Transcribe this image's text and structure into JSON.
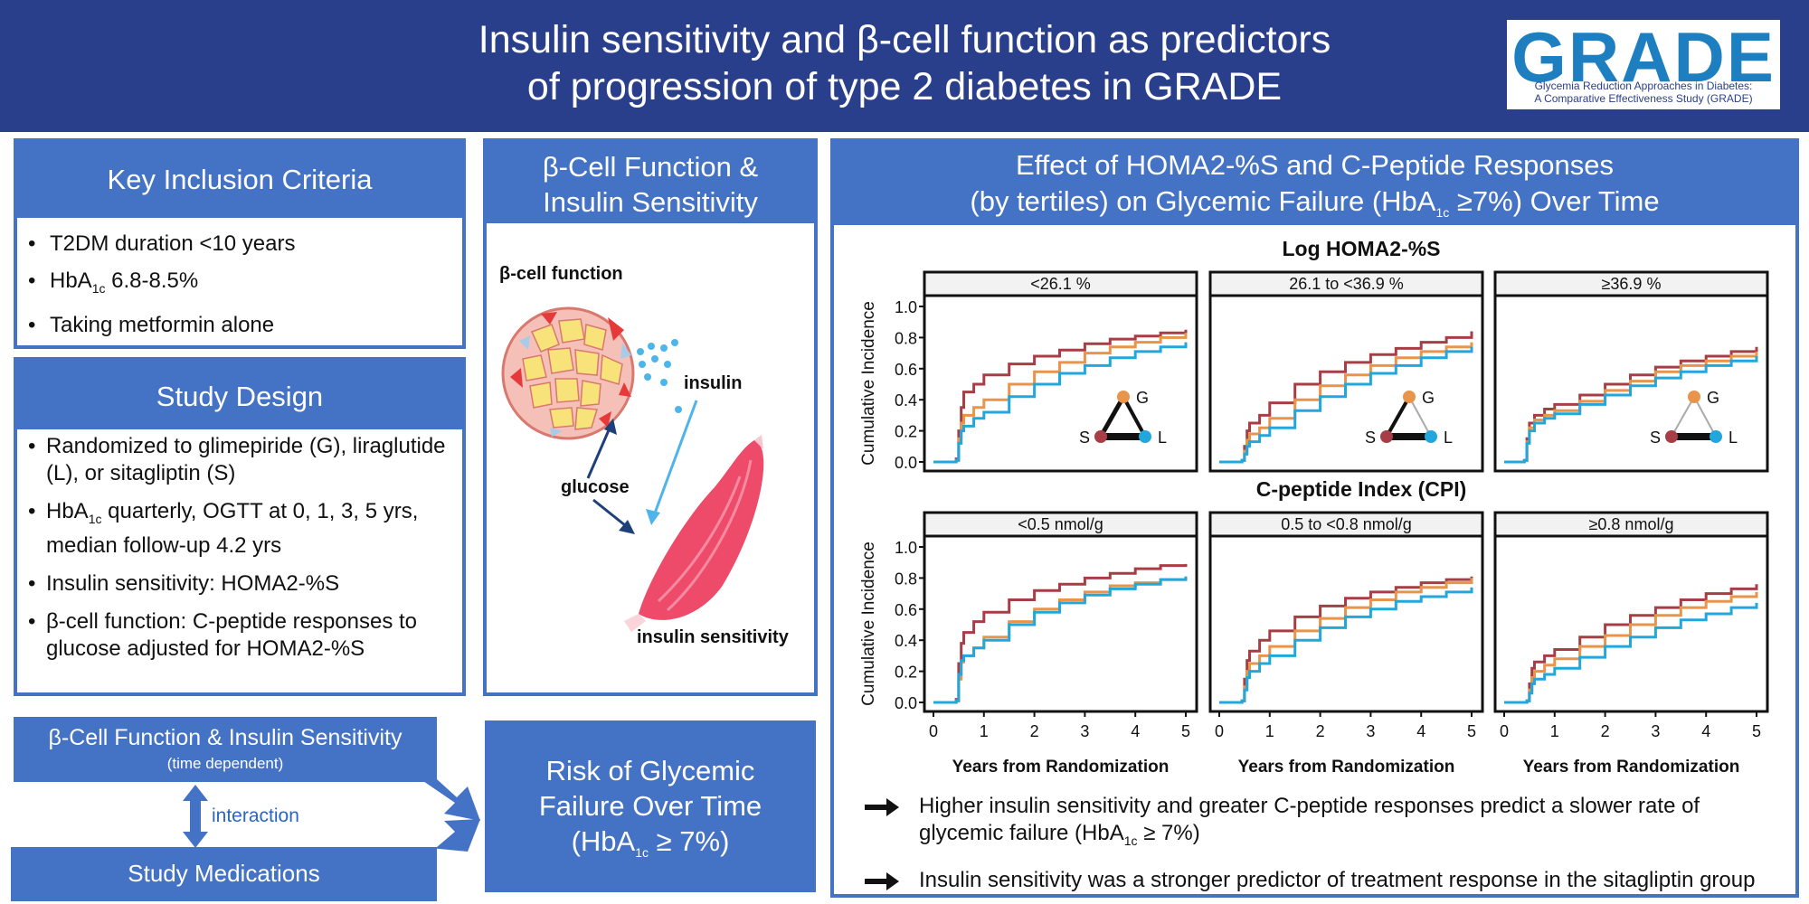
{
  "header": {
    "title_line1": "Insulin sensitivity and β-cell function as predictors",
    "title_line2": "of progression of type 2 diabetes in GRADE",
    "logo_big": "GRADE",
    "logo_sub1": "Glycemia Reduction Approaches in Diabetes:",
    "logo_sub2": "A Comparative Effectiveness Study (GRADE)"
  },
  "inclusion": {
    "title": "Key Inclusion Criteria",
    "item1": "T2DM duration <10 years",
    "item2_pre": "HbA",
    "item2_sub": "1c",
    "item2_post": " 6.8-8.5%",
    "item3": "Taking metformin alone"
  },
  "design": {
    "title": "Study Design",
    "item1": "Randomized to glimepiride (G), liraglutide (L), or sitagliptin (S)",
    "item2_pre": "HbA",
    "item2_sub": "1c",
    "item2_post": " quarterly, OGTT at 0, 1, 3, 5 yrs, median follow-up 4.2 yrs",
    "item3": "Insulin sensitivity: HOMA2-%S",
    "item4": "β-cell function: C-peptide responses to glucose adjusted for HOMA2-%S"
  },
  "beta": {
    "title_line1": "β-Cell Function &",
    "title_line2": "Insulin Sensitivity",
    "label_beta": "β-cell function",
    "label_insulin": "insulin",
    "label_glucose": "glucose",
    "label_sensitivity": "insulin sensitivity"
  },
  "flow": {
    "box1_title": "β-Cell Function & Insulin Sensitivity",
    "box1_sub": "(time dependent)",
    "interaction": "interaction",
    "box2_title": "Study Medications",
    "risk_line1": "Risk of Glycemic",
    "risk_line2": "Failure Over Time",
    "risk_line3_pre": "(HbA",
    "risk_line3_sub": "1c",
    "risk_line3_post": " ≥ 7%)"
  },
  "effect": {
    "title_line1": "Effect of HOMA2-%S and C-Peptide Responses",
    "title_line2_pre": "(by tertiles) on Glycemic Failure (HbA",
    "title_line2_sub": "1c",
    "title_line2_post": " ≥7%) Over Time",
    "conclusion1_a": "Higher insulin sensitivity and greater C-peptide responses predict a slower rate of",
    "conclusion1_b_pre": "glycemic failure (HbA",
    "conclusion1_b_sub": "1c",
    "conclusion1_b_post": " ≥ 7%)",
    "conclusion2": "Insulin sensitivity was a stronger predictor of treatment response in the sitagliptin group"
  },
  "colors": {
    "glimepiride": "#e8944a",
    "liraglutide": "#22a7dc",
    "sitagliptin": "#a83e45",
    "header": "#2a3f8c",
    "panel": "#4472c4"
  },
  "chart_data": {
    "type": "line",
    "xlabel": "Years from Randomization",
    "ylabel": "Cumulative Incidence",
    "xticks": [
      "0",
      "1",
      "2",
      "3",
      "4",
      "5"
    ],
    "yticks": [
      "0.0",
      "0.2",
      "0.4",
      "0.6",
      "0.8",
      "1.0"
    ],
    "xlim": [
      0,
      5
    ],
    "ylim": [
      0,
      1
    ],
    "legend_nodes": [
      "G",
      "S",
      "L"
    ],
    "rows": [
      {
        "title": "Log HOMA2-%S",
        "panels": [
          {
            "label": "<26.1 %",
            "network": {
              "SL": 8,
              "SG": 5,
              "GL": 4
            },
            "series": [
              {
                "id": "S",
                "x": [
                  0,
                  0.45,
                  0.5,
                  0.55,
                  0.6,
                  0.8,
                  1,
                  1.5,
                  2,
                  2.5,
                  3,
                  3.5,
                  4,
                  4.5,
                  5
                ],
                "y": [
                  0,
                  0.02,
                  0.2,
                  0.35,
                  0.45,
                  0.5,
                  0.56,
                  0.63,
                  0.68,
                  0.72,
                  0.76,
                  0.79,
                  0.81,
                  0.83,
                  0.85
                ]
              },
              {
                "id": "G",
                "x": [
                  0,
                  0.45,
                  0.5,
                  0.55,
                  0.6,
                  0.8,
                  1,
                  1.5,
                  2,
                  2.5,
                  3,
                  3.5,
                  4,
                  4.5,
                  5
                ],
                "y": [
                  0,
                  0.01,
                  0.15,
                  0.25,
                  0.3,
                  0.35,
                  0.4,
                  0.5,
                  0.58,
                  0.64,
                  0.7,
                  0.74,
                  0.77,
                  0.8,
                  0.83
                ]
              },
              {
                "id": "L",
                "x": [
                  0,
                  0.45,
                  0.5,
                  0.55,
                  0.6,
                  0.8,
                  1,
                  1.5,
                  2,
                  2.5,
                  3,
                  3.5,
                  4,
                  4.5,
                  5
                ],
                "y": [
                  0,
                  0.01,
                  0.12,
                  0.2,
                  0.23,
                  0.28,
                  0.32,
                  0.42,
                  0.5,
                  0.57,
                  0.62,
                  0.67,
                  0.71,
                  0.74,
                  0.77
                ]
              }
            ]
          },
          {
            "label": "26.1 to <36.9 %",
            "network": {
              "SL": 8,
              "SG": 4,
              "GL": 2
            },
            "series": [
              {
                "id": "S",
                "x": [
                  0,
                  0.45,
                  0.5,
                  0.55,
                  0.6,
                  0.8,
                  1,
                  1.5,
                  2,
                  2.5,
                  3,
                  3.5,
                  4,
                  4.5,
                  5
                ],
                "y": [
                  0,
                  0.01,
                  0.1,
                  0.2,
                  0.25,
                  0.3,
                  0.38,
                  0.5,
                  0.58,
                  0.64,
                  0.69,
                  0.73,
                  0.77,
                  0.8,
                  0.84
                ]
              },
              {
                "id": "G",
                "x": [
                  0,
                  0.45,
                  0.5,
                  0.55,
                  0.6,
                  0.8,
                  1,
                  1.5,
                  2,
                  2.5,
                  3,
                  3.5,
                  4,
                  4.5,
                  5
                ],
                "y": [
                  0,
                  0.01,
                  0.07,
                  0.14,
                  0.18,
                  0.22,
                  0.28,
                  0.4,
                  0.49,
                  0.56,
                  0.62,
                  0.67,
                  0.71,
                  0.74,
                  0.77
                ]
              },
              {
                "id": "L",
                "x": [
                  0,
                  0.45,
                  0.5,
                  0.55,
                  0.6,
                  0.8,
                  1,
                  1.5,
                  2,
                  2.5,
                  3,
                  3.5,
                  4,
                  4.5,
                  5
                ],
                "y": [
                  0,
                  0.01,
                  0.05,
                  0.1,
                  0.13,
                  0.17,
                  0.22,
                  0.33,
                  0.42,
                  0.5,
                  0.57,
                  0.62,
                  0.67,
                  0.71,
                  0.74
                ]
              }
            ]
          },
          {
            "label": "≥36.9 %",
            "network": {
              "SL": 8,
              "SG": 2,
              "GL": 2
            },
            "series": [
              {
                "id": "S",
                "x": [
                  0,
                  0.4,
                  0.45,
                  0.5,
                  0.6,
                  0.8,
                  1,
                  1.5,
                  2,
                  2.5,
                  3,
                  3.5,
                  4,
                  4.5,
                  5
                ],
                "y": [
                  0,
                  0.01,
                  0.15,
                  0.25,
                  0.3,
                  0.34,
                  0.37,
                  0.43,
                  0.5,
                  0.56,
                  0.61,
                  0.65,
                  0.68,
                  0.71,
                  0.74
                ]
              },
              {
                "id": "G",
                "x": [
                  0,
                  0.4,
                  0.45,
                  0.5,
                  0.6,
                  0.8,
                  1,
                  1.5,
                  2,
                  2.5,
                  3,
                  3.5,
                  4,
                  4.5,
                  5
                ],
                "y": [
                  0,
                  0.01,
                  0.13,
                  0.22,
                  0.27,
                  0.3,
                  0.33,
                  0.39,
                  0.46,
                  0.52,
                  0.58,
                  0.62,
                  0.65,
                  0.68,
                  0.71
                ]
              },
              {
                "id": "L",
                "x": [
                  0,
                  0.4,
                  0.45,
                  0.5,
                  0.6,
                  0.8,
                  1,
                  1.5,
                  2,
                  2.5,
                  3,
                  3.5,
                  4,
                  4.5,
                  5
                ],
                "y": [
                  0,
                  0.01,
                  0.12,
                  0.2,
                  0.25,
                  0.28,
                  0.31,
                  0.37,
                  0.43,
                  0.49,
                  0.54,
                  0.58,
                  0.62,
                  0.65,
                  0.68
                ]
              }
            ]
          }
        ]
      },
      {
        "title": "C-peptide Index (CPI)",
        "panels": [
          {
            "label": "<0.5 nmol/g",
            "series": [
              {
                "id": "S",
                "x": [
                  0,
                  0.45,
                  0.5,
                  0.55,
                  0.6,
                  0.8,
                  1,
                  1.5,
                  2,
                  2.5,
                  3,
                  3.5,
                  4,
                  4.5,
                  5
                ],
                "y": [
                  0,
                  0.02,
                  0.25,
                  0.38,
                  0.45,
                  0.52,
                  0.58,
                  0.66,
                  0.72,
                  0.76,
                  0.8,
                  0.83,
                  0.86,
                  0.88,
                  0.89
                ]
              },
              {
                "id": "G",
                "x": [
                  0,
                  0.45,
                  0.5,
                  0.55,
                  0.6,
                  0.8,
                  1,
                  1.5,
                  2,
                  2.5,
                  3,
                  3.5,
                  4,
                  4.5,
                  5
                ],
                "y": [
                  0,
                  0.01,
                  0.15,
                  0.26,
                  0.3,
                  0.35,
                  0.42,
                  0.52,
                  0.6,
                  0.66,
                  0.71,
                  0.75,
                  0.77,
                  0.79,
                  0.81
                ]
              },
              {
                "id": "L",
                "x": [
                  0,
                  0.45,
                  0.5,
                  0.55,
                  0.6,
                  0.8,
                  1,
                  1.5,
                  2,
                  2.5,
                  3,
                  3.5,
                  4,
                  4.5,
                  5
                ],
                "y": [
                  0,
                  0.01,
                  0.18,
                  0.27,
                  0.3,
                  0.35,
                  0.4,
                  0.5,
                  0.58,
                  0.64,
                  0.69,
                  0.73,
                  0.76,
                  0.79,
                  0.81
                ]
              }
            ]
          },
          {
            "label": "0.5 to <0.8 nmol/g",
            "series": [
              {
                "id": "S",
                "x": [
                  0,
                  0.45,
                  0.5,
                  0.55,
                  0.6,
                  0.8,
                  1,
                  1.5,
                  2,
                  2.5,
                  3,
                  3.5,
                  4,
                  4.5,
                  5
                ],
                "y": [
                  0,
                  0.01,
                  0.15,
                  0.27,
                  0.33,
                  0.4,
                  0.46,
                  0.55,
                  0.62,
                  0.67,
                  0.71,
                  0.74,
                  0.77,
                  0.79,
                  0.81
                ]
              },
              {
                "id": "G",
                "x": [
                  0,
                  0.45,
                  0.5,
                  0.55,
                  0.6,
                  0.8,
                  1,
                  1.5,
                  2,
                  2.5,
                  3,
                  3.5,
                  4,
                  4.5,
                  5
                ],
                "y": [
                  0,
                  0.01,
                  0.1,
                  0.2,
                  0.25,
                  0.3,
                  0.36,
                  0.46,
                  0.54,
                  0.61,
                  0.66,
                  0.71,
                  0.74,
                  0.77,
                  0.8
                ]
              },
              {
                "id": "L",
                "x": [
                  0,
                  0.45,
                  0.5,
                  0.55,
                  0.6,
                  0.8,
                  1,
                  1.5,
                  2,
                  2.5,
                  3,
                  3.5,
                  4,
                  4.5,
                  5
                ],
                "y": [
                  0,
                  0.01,
                  0.08,
                  0.16,
                  0.2,
                  0.25,
                  0.3,
                  0.4,
                  0.48,
                  0.55,
                  0.6,
                  0.65,
                  0.68,
                  0.71,
                  0.74
                ]
              }
            ]
          },
          {
            "label": "≥0.8 nmol/g",
            "series": [
              {
                "id": "S",
                "x": [
                  0,
                  0.45,
                  0.5,
                  0.55,
                  0.6,
                  0.8,
                  1,
                  1.5,
                  2,
                  2.5,
                  3,
                  3.5,
                  4,
                  4.5,
                  5
                ],
                "y": [
                  0,
                  0.01,
                  0.12,
                  0.22,
                  0.26,
                  0.3,
                  0.34,
                  0.42,
                  0.5,
                  0.56,
                  0.61,
                  0.66,
                  0.7,
                  0.73,
                  0.76
                ]
              },
              {
                "id": "G",
                "x": [
                  0,
                  0.45,
                  0.5,
                  0.55,
                  0.6,
                  0.8,
                  1,
                  1.5,
                  2,
                  2.5,
                  3,
                  3.5,
                  4,
                  4.5,
                  5
                ],
                "y": [
                  0,
                  0.01,
                  0.08,
                  0.16,
                  0.2,
                  0.24,
                  0.28,
                  0.36,
                  0.43,
                  0.5,
                  0.56,
                  0.61,
                  0.65,
                  0.68,
                  0.71
                ]
              },
              {
                "id": "L",
                "x": [
                  0,
                  0.45,
                  0.5,
                  0.55,
                  0.6,
                  0.8,
                  1,
                  1.5,
                  2,
                  2.5,
                  3,
                  3.5,
                  4,
                  4.5,
                  5
                ],
                "y": [
                  0,
                  0.01,
                  0.06,
                  0.12,
                  0.15,
                  0.18,
                  0.22,
                  0.29,
                  0.36,
                  0.42,
                  0.48,
                  0.53,
                  0.57,
                  0.61,
                  0.64
                ]
              }
            ]
          }
        ]
      }
    ]
  }
}
